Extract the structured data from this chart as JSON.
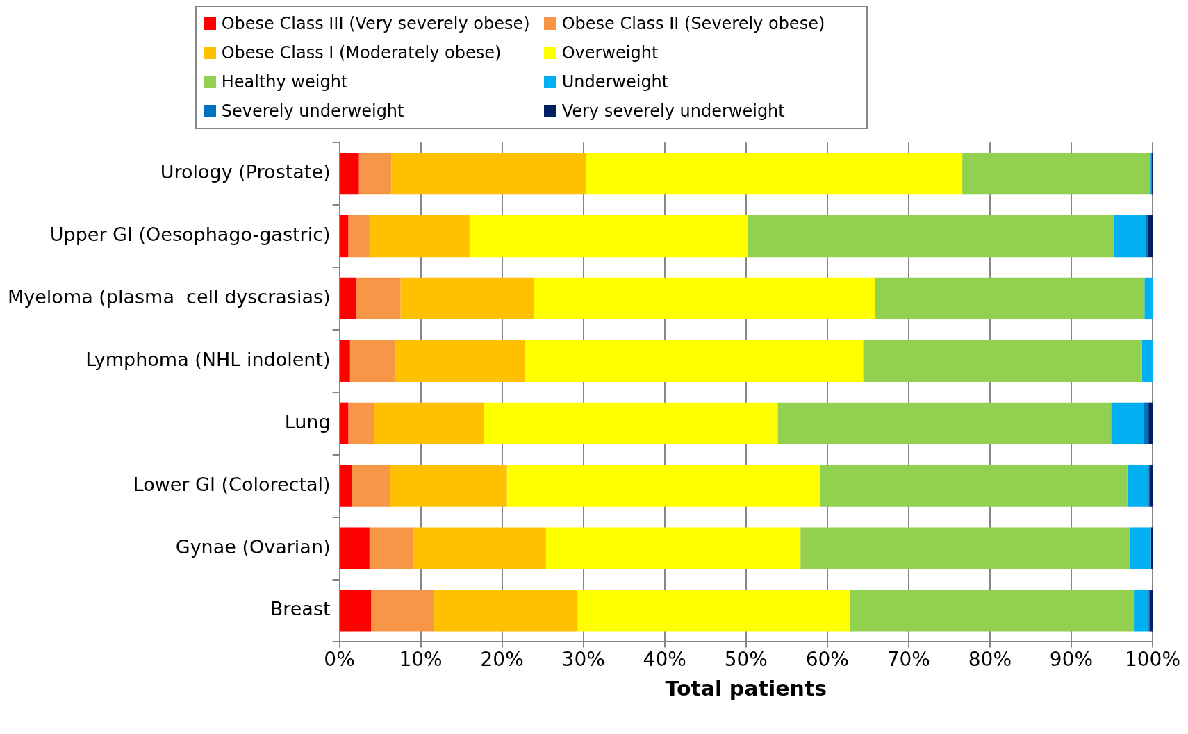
{
  "chart_data": {
    "type": "bar",
    "orientation": "horizontal",
    "stacked": true,
    "xlabel": "Total patients",
    "categories": [
      "Urology (Prostate)",
      "Upper GI (Oesophago-gastric)",
      "Myeloma (plasma  cell dyscrasias)",
      "Lymphoma (NHL indolent)",
      "Lung",
      "Lower GI (Colorectal)",
      "Gynae (Ovarian)",
      "Breast"
    ],
    "series": [
      {
        "name": "Obese Class III (Very severely obese)",
        "color": "#ff0000",
        "values": [
          2.4,
          1.1,
          2.1,
          1.3,
          1.1,
          1.5,
          3.7,
          3.9
        ]
      },
      {
        "name": "Obese Class II (Severely obese)",
        "color": "#f79646",
        "values": [
          4.0,
          2.6,
          5.4,
          5.5,
          3.2,
          4.7,
          5.4,
          7.7
        ]
      },
      {
        "name": "Obese Class I (Moderately obese)",
        "color": "#ffc000",
        "values": [
          23.9,
          12.3,
          16.4,
          16.0,
          13.5,
          14.4,
          16.3,
          17.7
        ]
      },
      {
        "name": "Overweight",
        "color": "#ffff00",
        "values": [
          46.3,
          34.2,
          42.0,
          41.6,
          36.1,
          38.5,
          31.3,
          33.5
        ]
      },
      {
        "name": "Healthy weight",
        "color": "#92d050",
        "values": [
          23.0,
          45.1,
          33.1,
          34.3,
          41.0,
          37.8,
          40.5,
          34.9
        ]
      },
      {
        "name": "Underweight",
        "color": "#00b0f0",
        "values": [
          0.2,
          3.9,
          1.0,
          1.3,
          4.0,
          2.6,
          2.6,
          1.8
        ]
      },
      {
        "name": "Severely underweight",
        "color": "#0070c0",
        "values": [
          0.1,
          0.2,
          0,
          0,
          0.6,
          0.2,
          0,
          0.1
        ]
      },
      {
        "name": "Very severely underweight",
        "color": "#002060",
        "values": [
          0.1,
          0.6,
          0,
          0,
          0.5,
          0.3,
          0.2,
          0.4
        ]
      }
    ],
    "xlim": [
      0,
      100
    ],
    "xticks": [
      {
        "value": 0,
        "label": "0%"
      },
      {
        "value": 10,
        "label": "10%"
      },
      {
        "value": 20,
        "label": "20%"
      },
      {
        "value": 30,
        "label": "30%"
      },
      {
        "value": 40,
        "label": "40%"
      },
      {
        "value": 50,
        "label": "50%"
      },
      {
        "value": 60,
        "label": "60%"
      },
      {
        "value": 70,
        "label": "70%"
      },
      {
        "value": 80,
        "label": "80%"
      },
      {
        "value": 90,
        "label": "90%"
      },
      {
        "value": 100,
        "label": "100%"
      }
    ],
    "grid": "x",
    "legend": "top"
  }
}
